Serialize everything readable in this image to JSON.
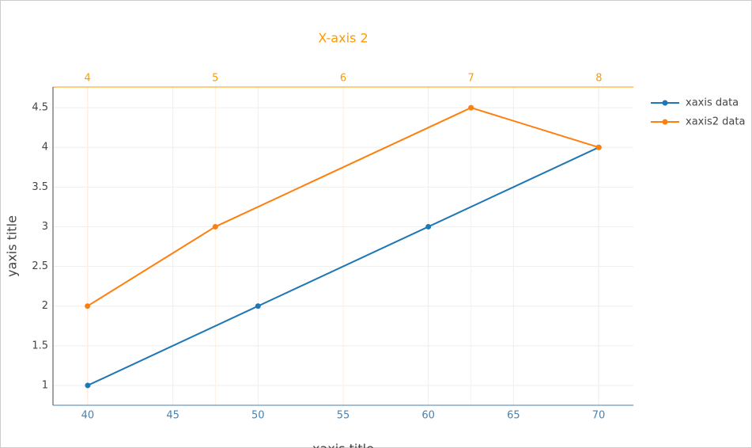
{
  "chart_data": {
    "type": "line",
    "x2title": "X-axis 2",
    "xtitle": "xaxis title",
    "ytitle": "yaxis title",
    "xlim": [
      37.96,
      72.04
    ],
    "xticks": [
      40,
      45,
      50,
      55,
      60,
      65,
      70
    ],
    "xcolor": "#4682b4",
    "x2lim": [
      3.73,
      8.27
    ],
    "x2ticks": [
      4,
      5,
      6,
      7,
      8
    ],
    "x2color": "#ff9900",
    "ylim": [
      0.75,
      4.76
    ],
    "yticks": [
      1,
      1.5,
      2,
      2.5,
      3,
      3.5,
      4,
      4.5
    ],
    "grid": true,
    "legend": "top-right",
    "series": [
      {
        "name": "xaxis data",
        "color": "#1f77b4",
        "axis": "x",
        "x": [
          40,
          50,
          60,
          70
        ],
        "values": [
          1,
          2,
          3,
          4
        ]
      },
      {
        "name": "xaxis2 data",
        "color": "#ff7f0e",
        "axis": "x2",
        "x": [
          4,
          5,
          7,
          8
        ],
        "values": [
          2,
          3,
          4.5,
          4
        ]
      }
    ]
  }
}
